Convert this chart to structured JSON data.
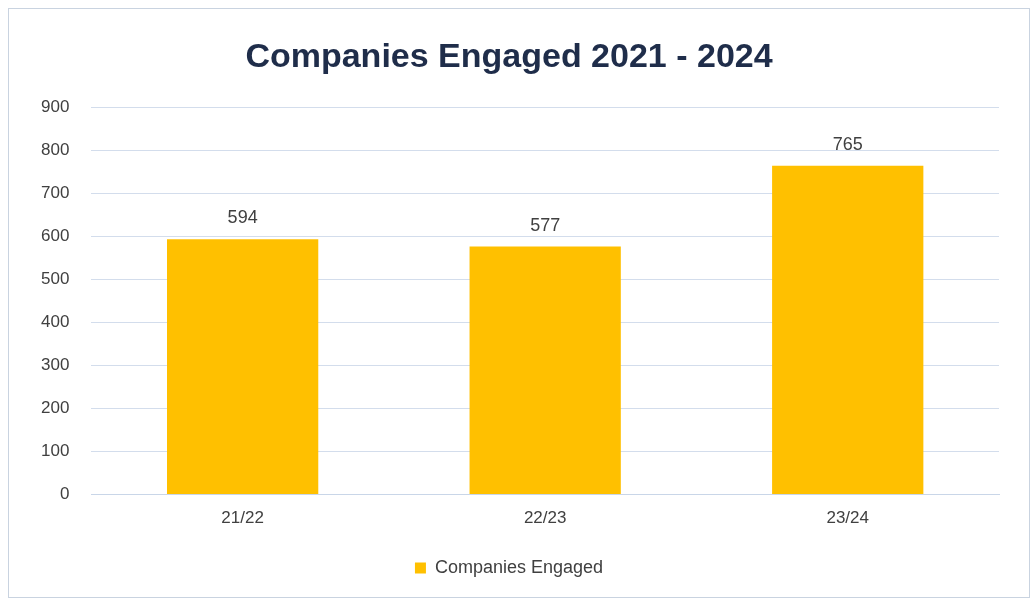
{
  "chart_data": {
    "type": "bar",
    "title": "Companies Engaged 2021 - 2024",
    "categories": [
      "21/22",
      "22/23",
      "23/24"
    ],
    "series": [
      {
        "name": "Companies Engaged",
        "color": "#ffc000",
        "values": [
          594,
          577,
          765
        ]
      }
    ],
    "ylim": [
      0,
      900
    ],
    "yticks": [
      0,
      100,
      200,
      300,
      400,
      500,
      600,
      700,
      800,
      900
    ],
    "grid": "y",
    "legend": "bottom",
    "data_labels": true
  }
}
